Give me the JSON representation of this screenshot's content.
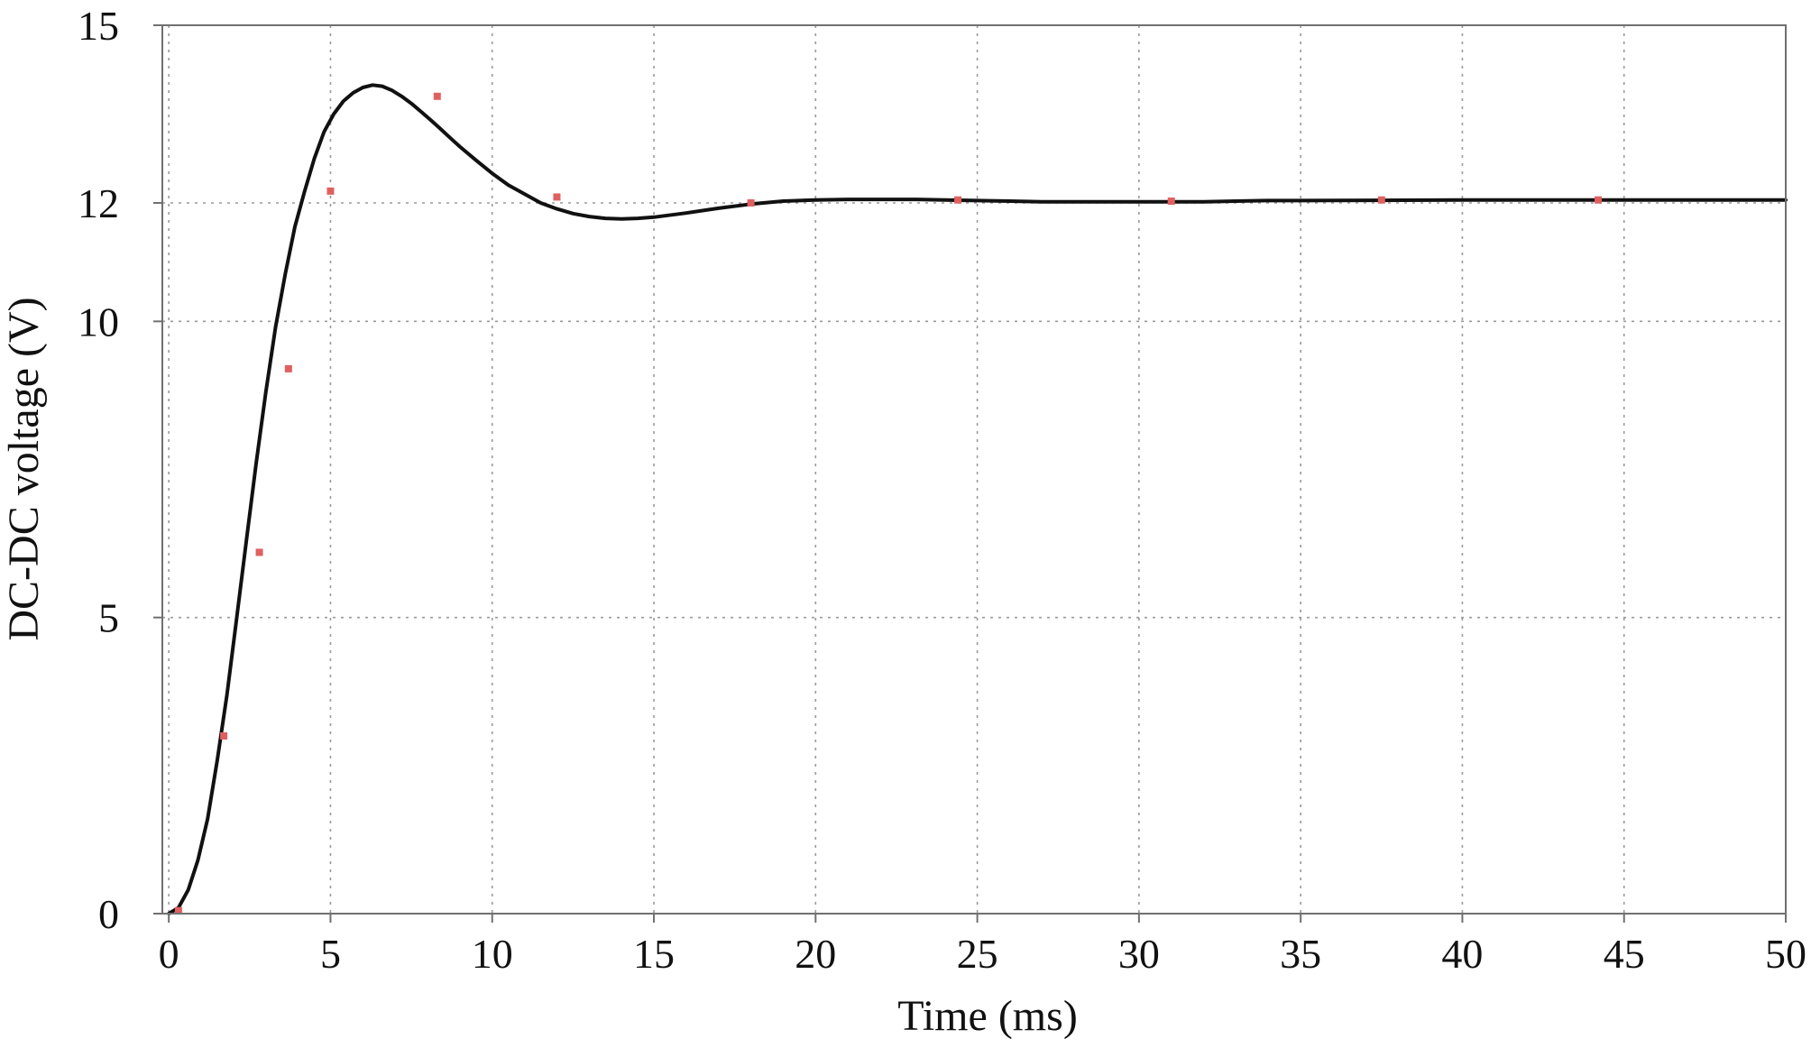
{
  "chart_data": {
    "type": "line",
    "title": "",
    "xlabel": "Time (ms)",
    "ylabel": "DC-DC voltage (V)",
    "xlim": [
      -0.2,
      50
    ],
    "ylim": [
      0,
      15
    ],
    "x_ticks": [
      0,
      5,
      10,
      15,
      20,
      25,
      30,
      35,
      40,
      45,
      50
    ],
    "x_tick_labels": [
      "0",
      "5",
      "10",
      "15",
      "20",
      "25",
      "30",
      "35",
      "40",
      "45",
      "50"
    ],
    "y_ticks": [
      0,
      5,
      10,
      12,
      15
    ],
    "y_tick_labels": [
      "0",
      "5",
      "10",
      "12",
      "15"
    ],
    "grid": true,
    "legend": "none",
    "series": [
      {
        "style": "line",
        "color": "#111111",
        "x": [
          0,
          0.3,
          0.6,
          0.9,
          1.2,
          1.5,
          1.8,
          2.1,
          2.4,
          2.7,
          3.0,
          3.3,
          3.6,
          3.9,
          4.2,
          4.5,
          4.8,
          5.1,
          5.4,
          5.7,
          6.0,
          6.3,
          6.6,
          6.9,
          7.2,
          7.5,
          7.8,
          8.1,
          8.4,
          8.7,
          9.0,
          9.5,
          10.0,
          10.5,
          11.0,
          11.5,
          12.0,
          12.5,
          13.0,
          13.5,
          14.0,
          14.5,
          15.0,
          16.0,
          17.0,
          18.0,
          19.0,
          20.0,
          21.0,
          22.0,
          23.0,
          24.0,
          25.0,
          26.0,
          27.0,
          28.0,
          29.0,
          30.0,
          31.0,
          32.0,
          33.0,
          34.0,
          35.0,
          40.0,
          45.0,
          50.0
        ],
        "y": [
          0,
          0.1,
          0.4,
          0.9,
          1.6,
          2.6,
          3.7,
          5.0,
          6.3,
          7.6,
          8.8,
          9.9,
          10.8,
          11.6,
          12.2,
          12.75,
          13.2,
          13.5,
          13.72,
          13.86,
          13.95,
          13.99,
          13.97,
          13.9,
          13.8,
          13.68,
          13.54,
          13.4,
          13.25,
          13.1,
          12.95,
          12.72,
          12.5,
          12.3,
          12.15,
          12.0,
          11.9,
          11.82,
          11.77,
          11.74,
          11.73,
          11.74,
          11.76,
          11.83,
          11.91,
          11.98,
          12.03,
          12.05,
          12.06,
          12.06,
          12.06,
          12.05,
          12.04,
          12.03,
          12.02,
          12.02,
          12.02,
          12.02,
          12.02,
          12.02,
          12.03,
          12.04,
          12.04,
          12.05,
          12.05,
          12.05
        ]
      },
      {
        "style": "markers",
        "color": "#e06060",
        "x": [
          0.3,
          1.7,
          2.8,
          3.7,
          5.0,
          8.3,
          12.0,
          18.0,
          24.4,
          31.0,
          37.5,
          44.2
        ],
        "y": [
          0.05,
          3.0,
          6.1,
          9.2,
          12.2,
          13.8,
          12.1,
          12.0,
          12.05,
          12.03,
          12.05,
          12.05
        ]
      }
    ]
  }
}
